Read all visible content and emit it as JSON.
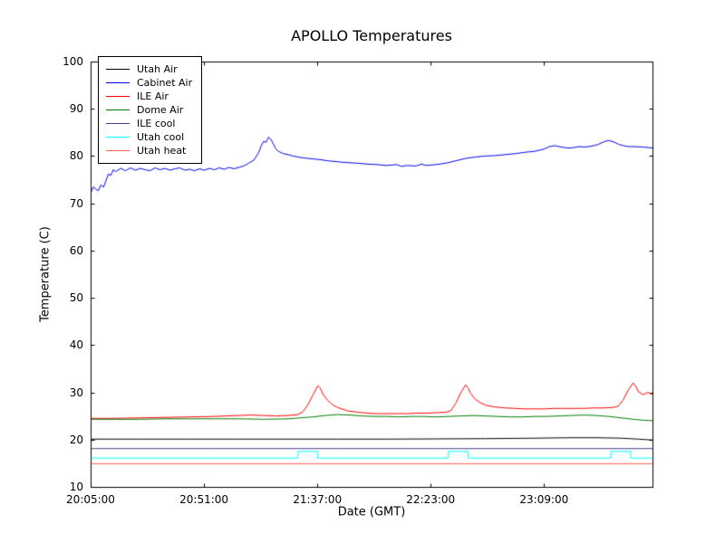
{
  "chart_data": {
    "type": "line",
    "title": "APOLLO Temperatures",
    "xlabel": "Date (GMT)",
    "ylabel": "Temperature (C)",
    "x_unit": "minutes since 20:05:00 GMT",
    "xlim": [
      0,
      228
    ],
    "ylim": [
      10,
      100
    ],
    "grid": false,
    "legend_position": "upper left",
    "y_ticks": [
      {
        "value": 10,
        "label": "10"
      },
      {
        "value": 20,
        "label": "20"
      },
      {
        "value": 30,
        "label": "30"
      },
      {
        "value": 40,
        "label": "40"
      },
      {
        "value": 50,
        "label": "50"
      },
      {
        "value": 60,
        "label": "60"
      },
      {
        "value": 70,
        "label": "70"
      },
      {
        "value": 80,
        "label": "80"
      },
      {
        "value": 90,
        "label": "90"
      },
      {
        "value": 100,
        "label": "100"
      }
    ],
    "x_ticks": [
      {
        "x": 0,
        "label": "20:05:00"
      },
      {
        "x": 46,
        "label": "20:51:00"
      },
      {
        "x": 92,
        "label": "21:37:00"
      },
      {
        "x": 138,
        "label": "22:23:00"
      },
      {
        "x": 184,
        "label": "23:09:00"
      }
    ],
    "series": [
      {
        "name": "Utah Air",
        "color": "#000000",
        "points": [
          [
            0,
            20.2
          ],
          [
            20,
            20.2
          ],
          [
            40,
            20.2
          ],
          [
            60,
            20.2
          ],
          [
            80,
            20.2
          ],
          [
            100,
            20.2
          ],
          [
            120,
            20.2
          ],
          [
            140,
            20.25
          ],
          [
            160,
            20.3
          ],
          [
            180,
            20.4
          ],
          [
            195,
            20.5
          ],
          [
            205,
            20.5
          ],
          [
            215,
            20.4
          ],
          [
            222,
            20.2
          ],
          [
            228,
            20.0
          ]
        ]
      },
      {
        "name": "Cabinet Air",
        "color": "#0000ee",
        "points": [
          [
            0,
            72.5
          ],
          [
            1,
            73.6
          ],
          [
            2,
            73.0
          ],
          [
            3,
            72.8
          ],
          [
            4,
            74.0
          ],
          [
            5,
            73.5
          ],
          [
            6,
            74.8
          ],
          [
            7,
            76.3
          ],
          [
            8,
            76.0
          ],
          [
            9,
            77.2
          ],
          [
            10,
            76.8
          ],
          [
            12,
            77.5
          ],
          [
            14,
            77.0
          ],
          [
            16,
            77.6
          ],
          [
            18,
            77.1
          ],
          [
            20,
            77.5
          ],
          [
            22,
            77.2
          ],
          [
            24,
            77.0
          ],
          [
            26,
            77.6
          ],
          [
            28,
            77.2
          ],
          [
            30,
            77.5
          ],
          [
            32,
            77.1
          ],
          [
            34,
            77.4
          ],
          [
            36,
            77.6
          ],
          [
            38,
            77.1
          ],
          [
            40,
            77.3
          ],
          [
            42,
            77.0
          ],
          [
            44,
            77.4
          ],
          [
            46,
            77.1
          ],
          [
            48,
            77.5
          ],
          [
            50,
            77.2
          ],
          [
            52,
            77.6
          ],
          [
            54,
            77.3
          ],
          [
            56,
            77.7
          ],
          [
            58,
            77.4
          ],
          [
            60,
            77.7
          ],
          [
            62,
            78.0
          ],
          [
            64,
            78.6
          ],
          [
            66,
            79.2
          ],
          [
            68,
            80.8
          ],
          [
            69,
            82.2
          ],
          [
            70,
            83.2
          ],
          [
            71,
            83.0
          ],
          [
            72,
            84.1
          ],
          [
            73,
            83.6
          ],
          [
            74,
            82.6
          ],
          [
            75,
            81.6
          ],
          [
            76,
            81.1
          ],
          [
            78,
            80.6
          ],
          [
            80,
            80.4
          ],
          [
            82,
            80.1
          ],
          [
            84,
            79.9
          ],
          [
            86,
            79.7
          ],
          [
            88,
            79.6
          ],
          [
            90,
            79.5
          ],
          [
            92,
            79.4
          ],
          [
            96,
            79.1
          ],
          [
            100,
            78.9
          ],
          [
            104,
            78.7
          ],
          [
            108,
            78.6
          ],
          [
            112,
            78.4
          ],
          [
            116,
            78.3
          ],
          [
            120,
            78.1
          ],
          [
            124,
            78.3
          ],
          [
            126,
            77.9
          ],
          [
            128,
            78.1
          ],
          [
            132,
            78.0
          ],
          [
            134,
            78.4
          ],
          [
            136,
            78.1
          ],
          [
            140,
            78.3
          ],
          [
            144,
            78.6
          ],
          [
            148,
            79.1
          ],
          [
            152,
            79.6
          ],
          [
            156,
            79.9
          ],
          [
            160,
            80.1
          ],
          [
            164,
            80.2
          ],
          [
            168,
            80.4
          ],
          [
            172,
            80.6
          ],
          [
            176,
            80.9
          ],
          [
            180,
            81.1
          ],
          [
            184,
            81.6
          ],
          [
            186,
            82.1
          ],
          [
            188,
            82.3
          ],
          [
            190,
            82.1
          ],
          [
            192,
            81.9
          ],
          [
            194,
            81.8
          ],
          [
            196,
            81.9
          ],
          [
            198,
            82.1
          ],
          [
            200,
            82.0
          ],
          [
            202,
            82.1
          ],
          [
            204,
            82.3
          ],
          [
            206,
            82.6
          ],
          [
            208,
            83.1
          ],
          [
            210,
            83.4
          ],
          [
            212,
            83.1
          ],
          [
            214,
            82.6
          ],
          [
            216,
            82.3
          ],
          [
            218,
            82.1
          ],
          [
            220,
            82.1
          ],
          [
            224,
            82.0
          ],
          [
            228,
            81.8
          ]
        ]
      },
      {
        "name": "ILE Air",
        "color": "#ff0000",
        "points": [
          [
            0,
            24.6
          ],
          [
            10,
            24.6
          ],
          [
            20,
            24.7
          ],
          [
            30,
            24.8
          ],
          [
            40,
            24.9
          ],
          [
            50,
            25.0
          ],
          [
            60,
            25.2
          ],
          [
            65,
            25.3
          ],
          [
            70,
            25.2
          ],
          [
            75,
            25.1
          ],
          [
            80,
            25.2
          ],
          [
            84,
            25.4
          ],
          [
            86,
            26.0
          ],
          [
            88,
            27.5
          ],
          [
            90,
            29.5
          ],
          [
            92,
            31.5
          ],
          [
            93,
            31.0
          ],
          [
            94,
            29.8
          ],
          [
            96,
            28.4
          ],
          [
            98,
            27.5
          ],
          [
            100,
            26.9
          ],
          [
            104,
            26.2
          ],
          [
            108,
            25.9
          ],
          [
            112,
            25.7
          ],
          [
            116,
            25.6
          ],
          [
            120,
            25.6
          ],
          [
            124,
            25.6
          ],
          [
            128,
            25.6
          ],
          [
            132,
            25.7
          ],
          [
            136,
            25.7
          ],
          [
            140,
            25.8
          ],
          [
            144,
            25.9
          ],
          [
            146,
            26.2
          ],
          [
            148,
            27.8
          ],
          [
            150,
            30.0
          ],
          [
            152,
            31.7
          ],
          [
            153,
            31.0
          ],
          [
            154,
            29.9
          ],
          [
            156,
            28.6
          ],
          [
            158,
            27.9
          ],
          [
            160,
            27.4
          ],
          [
            164,
            27.0
          ],
          [
            168,
            26.8
          ],
          [
            172,
            26.7
          ],
          [
            176,
            26.6
          ],
          [
            180,
            26.6
          ],
          [
            184,
            26.6
          ],
          [
            188,
            26.7
          ],
          [
            192,
            26.7
          ],
          [
            196,
            26.7
          ],
          [
            200,
            26.7
          ],
          [
            204,
            26.8
          ],
          [
            208,
            26.8
          ],
          [
            212,
            26.9
          ],
          [
            214,
            27.2
          ],
          [
            216,
            28.6
          ],
          [
            218,
            30.6
          ],
          [
            220,
            32.1
          ],
          [
            221,
            31.4
          ],
          [
            222,
            30.3
          ],
          [
            224,
            29.6
          ],
          [
            226,
            30.1
          ],
          [
            228,
            29.6
          ]
        ]
      },
      {
        "name": "Dome Air",
        "color": "#007a00",
        "points": [
          [
            0,
            24.4
          ],
          [
            10,
            24.4
          ],
          [
            20,
            24.4
          ],
          [
            30,
            24.5
          ],
          [
            40,
            24.5
          ],
          [
            50,
            24.5
          ],
          [
            60,
            24.5
          ],
          [
            70,
            24.4
          ],
          [
            80,
            24.5
          ],
          [
            85,
            24.7
          ],
          [
            90,
            24.9
          ],
          [
            95,
            25.2
          ],
          [
            100,
            25.4
          ],
          [
            105,
            25.3
          ],
          [
            110,
            25.1
          ],
          [
            115,
            25.0
          ],
          [
            120,
            25.0
          ],
          [
            125,
            24.9
          ],
          [
            130,
            25.0
          ],
          [
            135,
            25.0
          ],
          [
            140,
            24.9
          ],
          [
            145,
            25.0
          ],
          [
            150,
            25.1
          ],
          [
            155,
            25.2
          ],
          [
            160,
            25.1
          ],
          [
            165,
            25.0
          ],
          [
            170,
            24.9
          ],
          [
            175,
            24.9
          ],
          [
            180,
            25.0
          ],
          [
            185,
            25.0
          ],
          [
            190,
            25.1
          ],
          [
            195,
            25.2
          ],
          [
            200,
            25.3
          ],
          [
            205,
            25.2
          ],
          [
            210,
            25.0
          ],
          [
            215,
            24.7
          ],
          [
            220,
            24.4
          ],
          [
            224,
            24.2
          ],
          [
            228,
            24.1
          ]
        ]
      },
      {
        "name": "ILE cool",
        "color": "#483d8b",
        "points": [
          [
            0,
            18.2
          ],
          [
            50,
            18.2
          ],
          [
            100,
            18.2
          ],
          [
            150,
            18.2
          ],
          [
            200,
            18.2
          ],
          [
            228,
            18.2
          ]
        ]
      },
      {
        "name": "Utah cool",
        "color": "#00ffff",
        "points": [
          [
            0,
            16.2
          ],
          [
            84,
            16.2
          ],
          [
            84,
            17.6
          ],
          [
            92,
            17.6
          ],
          [
            92,
            16.2
          ],
          [
            145,
            16.2
          ],
          [
            145,
            17.6
          ],
          [
            153,
            17.6
          ],
          [
            153,
            16.2
          ],
          [
            211,
            16.2
          ],
          [
            211,
            17.6
          ],
          [
            219,
            17.6
          ],
          [
            219,
            16.2
          ],
          [
            228,
            16.2
          ]
        ]
      },
      {
        "name": "Utah heat",
        "color": "#ff5c5c",
        "points": [
          [
            0,
            15.0
          ],
          [
            50,
            15.0
          ],
          [
            100,
            15.0
          ],
          [
            150,
            15.0
          ],
          [
            200,
            15.0
          ],
          [
            228,
            15.0
          ]
        ]
      }
    ]
  }
}
